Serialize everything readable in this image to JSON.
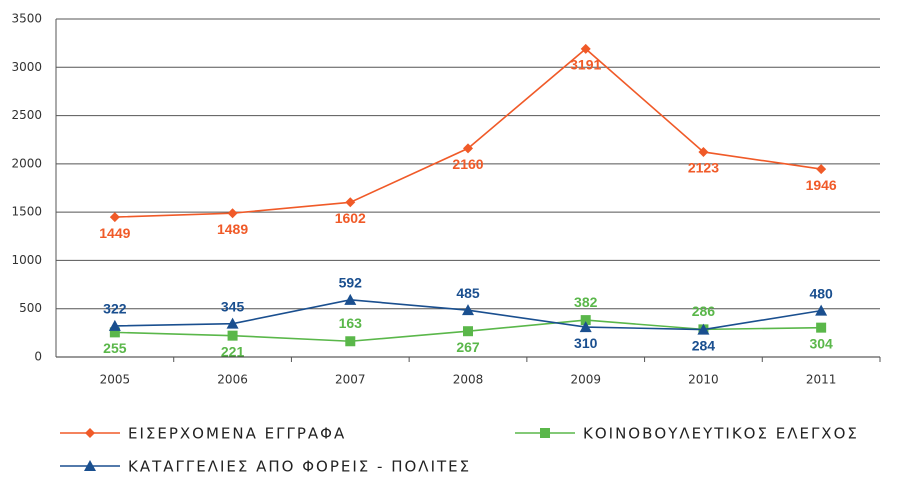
{
  "chart_data": {
    "type": "line",
    "categories": [
      "2005",
      "2006",
      "2007",
      "2008",
      "2009",
      "2010",
      "2011"
    ],
    "series": [
      {
        "name": "ΕΙΣΕΡΧΟΜΕΝΑ ΕΓΓΡΑΦΑ",
        "color": "#f05a28",
        "marker": "diamond",
        "values": [
          1449,
          1489,
          1602,
          2160,
          3191,
          2123,
          1946
        ]
      },
      {
        "name": "ΚΟΙΝΟΒΟΥΛΕΥΤΙΚΟΣ ΕΛΕΓΧΟΣ",
        "color": "#5ab74a",
        "marker": "square",
        "values": [
          255,
          221,
          163,
          267,
          382,
          286,
          304
        ]
      },
      {
        "name": "ΚΑΤΑΓΓΕΛΙΕΣ ΑΠΟ ΦΟΡΕΙΣ - ΠΟΛΙΤΕΣ",
        "color": "#1a4f8f",
        "marker": "triangle",
        "values": [
          322,
          345,
          592,
          485,
          310,
          284,
          480
        ]
      }
    ],
    "ylim": [
      0,
      3500
    ],
    "yticks": [
      0,
      500,
      1000,
      1500,
      2000,
      2500,
      3000,
      3500
    ],
    "grid": true,
    "legend": "bottom"
  }
}
